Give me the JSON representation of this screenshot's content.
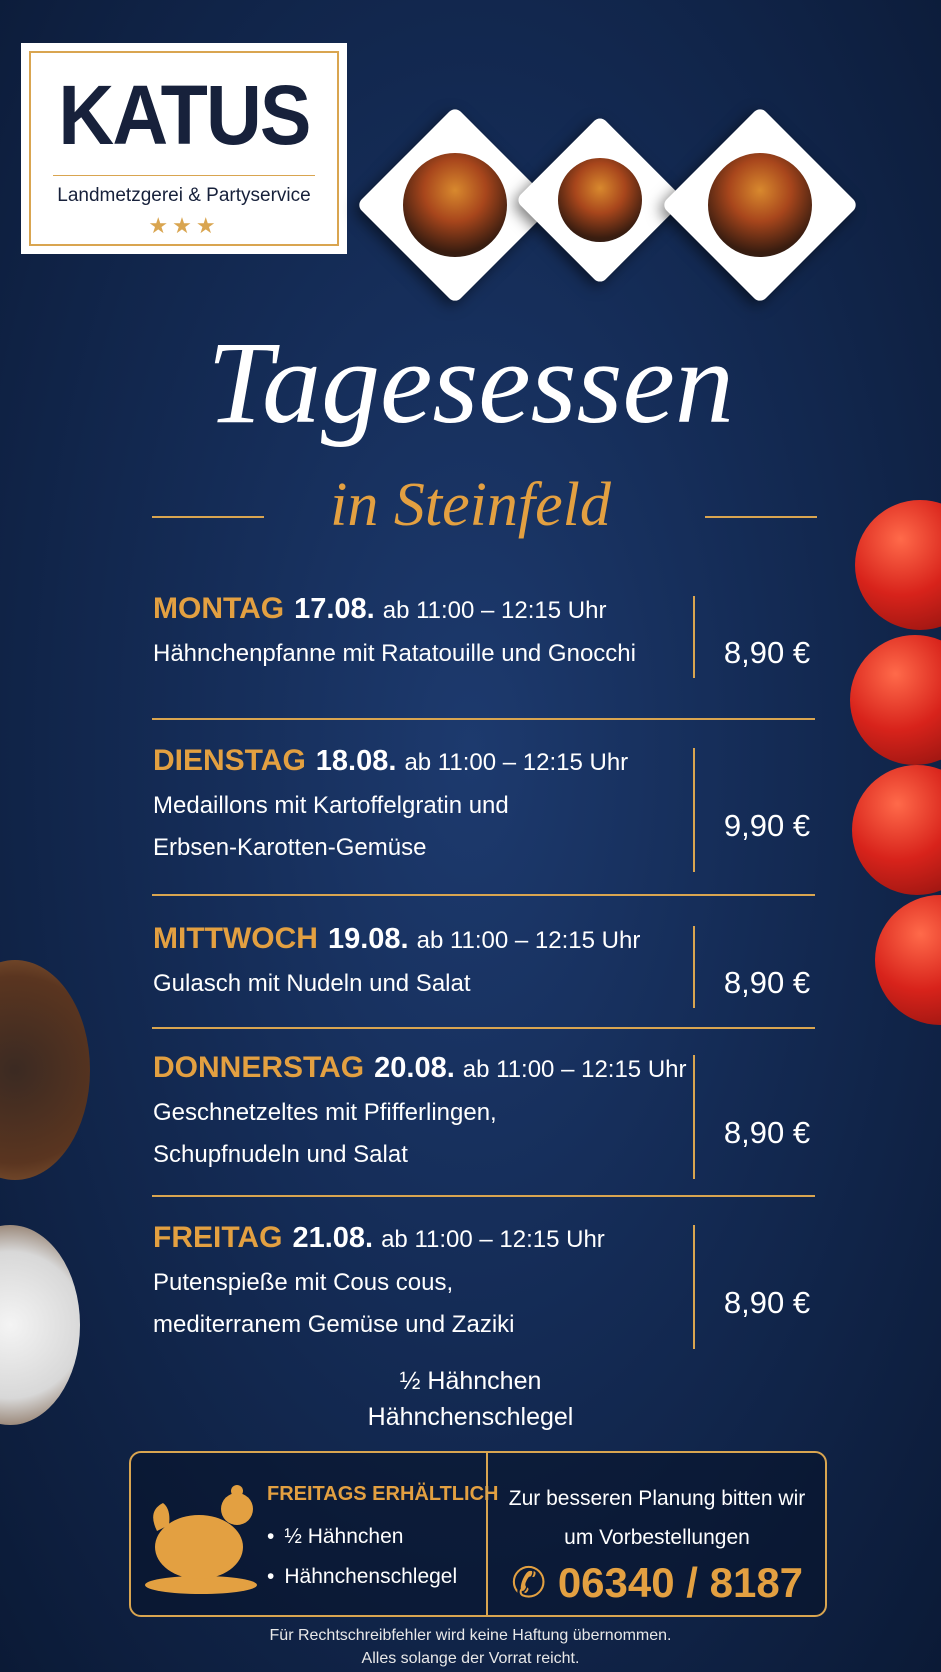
{
  "logo": {
    "name": "KATUS",
    "tagline": "Landmetzgerei & Partyservice",
    "stars": "★★★"
  },
  "title": "Tagesessen",
  "subtitle": "in Steinfeld",
  "menu": [
    {
      "day": "MONTAG",
      "date": "17.08.",
      "time": "ab 11:00 – 12:15 Uhr",
      "dish": [
        "Hähnchenpfanne mit Ratatouille und Gnocchi"
      ],
      "price": "8,90 €"
    },
    {
      "day": "DIENSTAG",
      "date": "18.08.",
      "time": "ab 11:00 – 12:15 Uhr",
      "dish": [
        "Medaillons mit Kartoffelgratin und",
        "Erbsen-Karotten-Gemüse"
      ],
      "price": "9,90 €"
    },
    {
      "day": "MITTWOCH",
      "date": "19.08.",
      "time": "ab 11:00 – 12:15 Uhr",
      "dish": [
        "Gulasch mit Nudeln und Salat"
      ],
      "price": "8,90 €"
    },
    {
      "day": "DONNERSTAG",
      "date": "20.08.",
      "time": "ab 11:00 – 12:15 Uhr",
      "dish": [
        "Geschnetzeltes mit Pfifferlingen,",
        "Schupfnudeln und Salat"
      ],
      "price": "8,90 €"
    },
    {
      "day": "FREITAG",
      "date": "21.08.",
      "time": "ab 11:00 – 12:15 Uhr",
      "dish": [
        "Putenspieße mit Cous cous,",
        "mediterranem Gemüse und Zaziki"
      ],
      "price": "8,90 €"
    }
  ],
  "extras": [
    "½ Hähnchen",
    "Hähnchenschlegel"
  ],
  "info_box": {
    "heading": "FREITAGS ERHÄLTLICH",
    "items": [
      "½ Hähnchen",
      "Hähnchenschlegel"
    ],
    "note": [
      "Zur besseren Planung bitten wir",
      "um Vorbestellungen"
    ],
    "phone": "06340 / 8187"
  },
  "footer": [
    "Für Rechtschreibfehler wird keine Haftung übernommen.",
    "Alles solange der Vorrat reicht."
  ]
}
